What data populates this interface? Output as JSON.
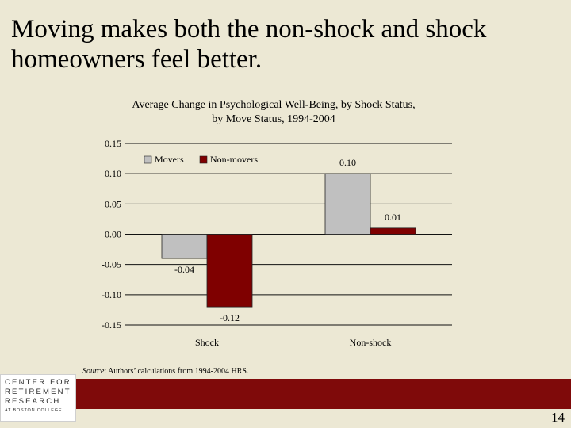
{
  "slide": {
    "title": "Moving makes both the non-shock and shock homeowners feel better.",
    "source_label": "Source",
    "source_text": ": Authors’ calculations from 1994-2004 HRS.",
    "page_number": "14"
  },
  "logo": {
    "line1": "CENTER FOR",
    "line2": "RETIREMENT",
    "line3": "RESEARCH",
    "line4": "AT BOSTON COLLEGE"
  },
  "chart_data": {
    "type": "bar",
    "title_line1": "Average Change in Psychological Well-Being, by Shock Status,",
    "title_line2": "by Move Status, 1994-2004",
    "categories": [
      "Shock",
      "Non-shock"
    ],
    "series": [
      {
        "name": "Movers",
        "values": [
          -0.04,
          0.1
        ],
        "labels": [
          "-0.04",
          "0.10"
        ],
        "color": "#c0c0c0"
      },
      {
        "name": "Non-movers",
        "values": [
          -0.12,
          0.01
        ],
        "labels": [
          "-0.12",
          "0.01"
        ],
        "color": "#7f0000"
      }
    ],
    "ylim": [
      -0.15,
      0.15
    ],
    "yticks": [
      0.15,
      0.1,
      0.05,
      0.0,
      -0.05,
      -0.1,
      -0.15
    ],
    "ytick_labels": [
      "0.15",
      "0.10",
      "0.05",
      "0.00",
      "-0.05",
      "-0.10",
      "-0.15"
    ],
    "grid": true,
    "legend_position": "top-left",
    "xlabel": "",
    "ylabel": ""
  }
}
